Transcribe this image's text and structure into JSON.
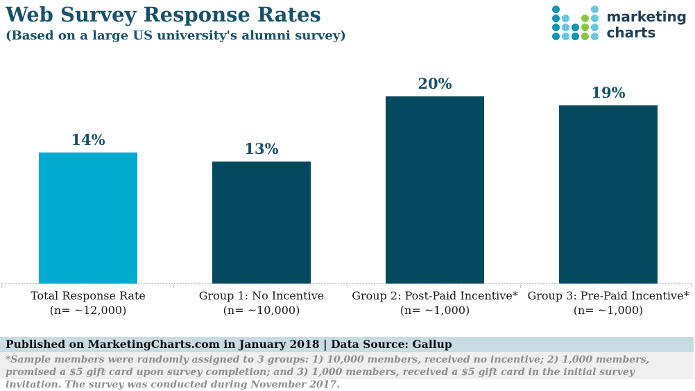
{
  "header": {
    "title": "Web Survey Response Rates",
    "subtitle": "(Based on a large US university's alumni survey)"
  },
  "logo": {
    "text_line1": "marketing",
    "text_line2": "charts",
    "dot_grid": [
      [
        1,
        0,
        0,
        0,
        2
      ],
      [
        1,
        2,
        0,
        3,
        2
      ],
      [
        1,
        2,
        1,
        3,
        2
      ],
      [
        1,
        2,
        1,
        3,
        2
      ]
    ],
    "colors": {
      "solid_teal": "#0e93b4",
      "checkered_blue": "#5ec3dc",
      "green": "#8bc53f",
      "text": "#1e3f58"
    }
  },
  "chart_data": {
    "type": "bar",
    "title": "Web Survey Response Rates",
    "subtitle": "(Based on a large US university's alumni survey)",
    "categories": [
      "Total Response Rate",
      "Group 1: No Incentive",
      "Group 2: Post-Paid Incentive*",
      "Group 3: Pre-Paid Incentive*"
    ],
    "category_sublabels": [
      "(n= ~12,000)",
      "(n= ~10,000)",
      "(n= ~1,000)",
      "(n= ~1,000)"
    ],
    "values": [
      14,
      13,
      20,
      19
    ],
    "value_labels": [
      "14%",
      "13%",
      "20%",
      "19%"
    ],
    "bar_colors": [
      "#00a9ce",
      "#05495f",
      "#05495f",
      "#05495f"
    ],
    "unit": "percent",
    "ylim": [
      0,
      23
    ],
    "grid": "off",
    "legend": "none"
  },
  "footer": {
    "published": "Published on MarketingCharts.com in January 2018 | Data Source: Gallup",
    "footnote": "*Sample members were randomly assigned to 3 groups: 1) 10,000 members, received no incentive; 2) 1,000 members, promised a $5 gift card upon survey completion; and 3) 1,000 members, received a $5 gift card in the initial survey invitation. The survey was conducted during November 2017."
  },
  "colors": {
    "accent_text": "#175169",
    "bar_cyan": "#00a9ce",
    "bar_dark": "#05495f",
    "published_bg": "#c8dce3",
    "footnote_bg": "#efefef",
    "footnote_text": "#8e8e8e",
    "axis_line": "#c9c9c9"
  }
}
